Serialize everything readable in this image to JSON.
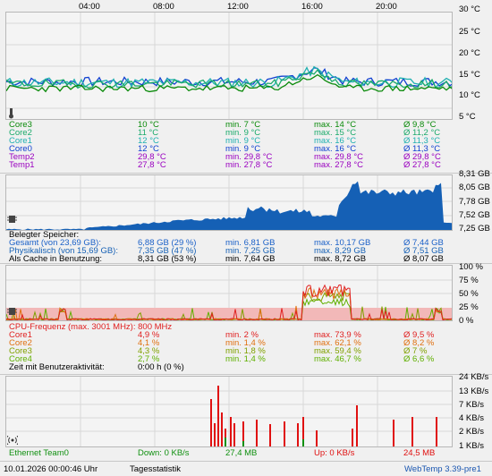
{
  "time_axis": [
    "04:00",
    "08:00",
    "12:00",
    "16:00",
    "20:00"
  ],
  "colors": {
    "core3": "#0a8a0a",
    "core2": "#1aaa6a",
    "core1": "#20b0b0",
    "core0": "#1040d0",
    "temp2": "#9a00c0",
    "temp1": "#9a00c0",
    "memory": "#1560b5",
    "cpu_total": "#e02020",
    "cpu_core1": "#e02020",
    "cpu_core2": "#e07010",
    "cpu_core3": "#80a000",
    "cpu_core4": "#60b000",
    "net_down": "#109010",
    "net_up": "#e01010"
  },
  "temperature": {
    "scale": [
      "30 °C",
      "25 °C",
      "20 °C",
      "15 °C",
      "10 °C",
      "5 °C"
    ],
    "rows": [
      {
        "name": "Core3",
        "cur": "10 °C",
        "min": "min. 7 °C",
        "max": "max. 14 °C",
        "avg": "Ø 9,8 °C",
        "color": "#0a8a0a"
      },
      {
        "name": "Core2",
        "cur": "11 °C",
        "min": "min. 9 °C",
        "max": "max. 15 °C",
        "avg": "Ø 11,2 °C",
        "color": "#1aaa6a"
      },
      {
        "name": "Core1",
        "cur": "12 °C",
        "min": "min. 9 °C",
        "max": "max. 16 °C",
        "avg": "Ø 11,3 °C",
        "color": "#20b0b0"
      },
      {
        "name": "Core0",
        "cur": "12 °C",
        "min": "min. 9 °C",
        "max": "max. 16 °C",
        "avg": "Ø 11,3 °C",
        "color": "#1040d0"
      },
      {
        "name": "Temp2",
        "cur": "29,8 °C",
        "min": "min. 29,8 °C",
        "max": "max. 29,8 °C",
        "avg": "Ø 29,8 °C",
        "color": "#9a00c0"
      },
      {
        "name": "Temp1",
        "cur": "27,8 °C",
        "min": "min. 27,8 °C",
        "max": "max. 27,8 °C",
        "avg": "Ø 27,8 °C",
        "color": "#9a00c0"
      }
    ]
  },
  "memory": {
    "scale": [
      "8,31 GB",
      "8,05 GB",
      "7,78 GB",
      "7,52 GB",
      "7,25 GB"
    ],
    "heading": "Belegter Speicher:",
    "rows": [
      {
        "name": "Gesamt (von 23,69 GB):",
        "cur": "6,88 GB (29 %)",
        "min": "min. 6,81 GB",
        "max": "max. 10,17 GB",
        "avg": "Ø 7,44 GB",
        "color": "#1a60c8"
      },
      {
        "name": "Physikalisch (von 15,69 GB):",
        "cur": "7,35 GB (47 %)",
        "min": "min. 7,25 GB",
        "max": "max. 8,29 GB",
        "avg": "Ø 7,51 GB",
        "color": "#1560b5"
      },
      {
        "name": "Als Cache in Benutzung:",
        "cur": "8,31 GB (53 %)",
        "min": "min. 7,64 GB",
        "max": "max. 8,72 GB",
        "avg": "Ø 8,07 GB",
        "color": "#000000"
      }
    ]
  },
  "cpu": {
    "scale": [
      "100 %",
      "75 %",
      "50 %",
      "25 %",
      "0 %"
    ],
    "heading": "CPU-Frequenz (max. 3001 MHz): 800 MHz",
    "rows": [
      {
        "name": "Core1",
        "cur": "4,9 %",
        "min": "min. 2 %",
        "max": "max. 73,9 %",
        "avg": "Ø 9,5 %",
        "color": "#e02020"
      },
      {
        "name": "Core2",
        "cur": "4,1 %",
        "min": "min. 1,4 %",
        "max": "max. 62,1 %",
        "avg": "Ø 8,2 %",
        "color": "#e07010"
      },
      {
        "name": "Core3",
        "cur": "4,3 %",
        "min": "min. 1,8 %",
        "max": "max. 59,4 %",
        "avg": "Ø 7 %",
        "color": "#80a000"
      },
      {
        "name": "Core4",
        "cur": "2,7 %",
        "min": "min. 1,4 %",
        "max": "max. 46,7 %",
        "avg": "Ø 6,6 %",
        "color": "#60b000"
      }
    ],
    "activity_label": "Zeit mit Benutzeraktivität:",
    "activity_value": "0:00 h (0 %)"
  },
  "network": {
    "scale": [
      "24 KB/s",
      "13 KB/s",
      "7 KB/s",
      "4 KB/s",
      "2 KB/s",
      "1 KB/s"
    ],
    "name": "Ethernet Team0",
    "down_cur": "Down: 0 KB/s",
    "down_total": "27,4 MB",
    "up_cur": "Up: 0 KB/s",
    "up_total": "24,5 MB"
  },
  "statusbar": {
    "datetime": "10.01.2026 00:00:46 Uhr",
    "mode": "Tagesstatistik",
    "version": "WebTemp 3.39-pre1"
  }
}
